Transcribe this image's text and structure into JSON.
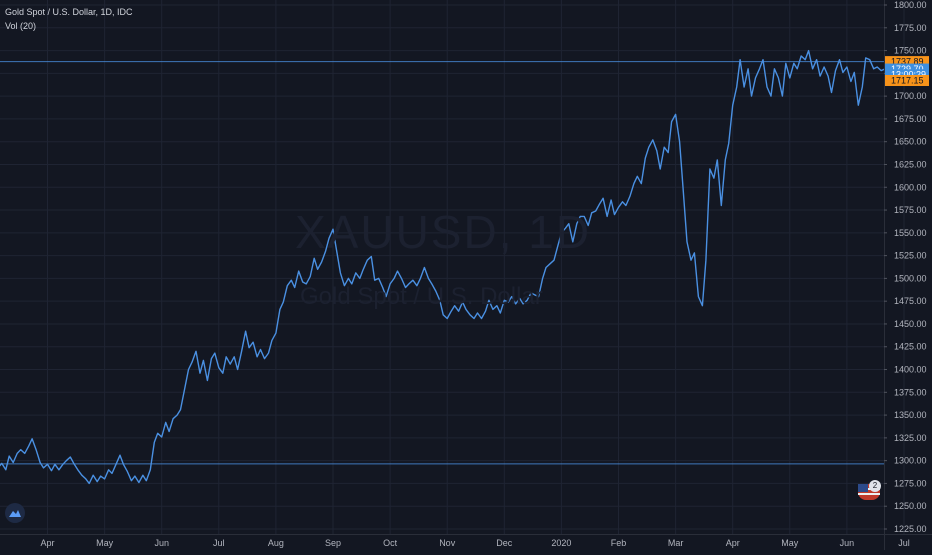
{
  "legend": {
    "title": "Gold Spot / U.S. Dollar, 1D, IDC",
    "indicator": "Vol (20)"
  },
  "watermark": {
    "symbol": "XAUUSD, 1D",
    "description": "Gold Spot / U.S. Dollar"
  },
  "badge_count": "2",
  "colors": {
    "background": "#131722",
    "line": "#4a90e2",
    "grid": "#1f2433",
    "axis_text": "#b2b5be",
    "price_label_orange": "#f7931a",
    "price_label_blue": "#3d8fe0"
  },
  "chart_data": {
    "type": "line",
    "ylim": [
      1225,
      1800
    ],
    "y_ticks": [
      1225,
      1250,
      1275,
      1300,
      1325,
      1350,
      1375,
      1400,
      1425,
      1450,
      1475,
      1500,
      1525,
      1550,
      1575,
      1600,
      1625,
      1650,
      1675,
      1700,
      1725,
      1750,
      1775,
      1800
    ],
    "y_tick_labels": [
      "1225.00",
      "1250.00",
      "1275.00",
      "1300.00",
      "1325.00",
      "1350.00",
      "1375.00",
      "1400.00",
      "1425.00",
      "1450.00",
      "1475.00",
      "1500.00",
      "1525.00",
      "1550.00",
      "1575.00",
      "1600.00",
      "1625.00",
      "1650.00",
      "1675.00",
      "1700.00",
      "1725.00",
      "1750.00",
      "1775.00",
      "1800.00"
    ],
    "x_ticks": [
      {
        "label": "Apr",
        "t": 1.0
      },
      {
        "label": "May",
        "t": 2.0
      },
      {
        "label": "Jun",
        "t": 3.0
      },
      {
        "label": "Jul",
        "t": 4.0
      },
      {
        "label": "Aug",
        "t": 5.0
      },
      {
        "label": "Sep",
        "t": 6.0
      },
      {
        "label": "Oct",
        "t": 7.0
      },
      {
        "label": "Nov",
        "t": 8.0
      },
      {
        "label": "Dec",
        "t": 9.0
      },
      {
        "label": "2020",
        "t": 10.0
      },
      {
        "label": "Feb",
        "t": 11.0
      },
      {
        "label": "Mar",
        "t": 12.0
      },
      {
        "label": "Apr",
        "t": 13.0
      },
      {
        "label": "May",
        "t": 14.0
      },
      {
        "label": "Jun",
        "t": 15.0
      },
      {
        "label": "Jul",
        "t": 16.0
      }
    ],
    "x_range": [
      0.13,
      16.2
    ],
    "series": [
      {
        "points": [
          [
            0.13,
            1292
          ],
          [
            0.2,
            1297
          ],
          [
            0.27,
            1290
          ],
          [
            0.33,
            1305
          ],
          [
            0.4,
            1298
          ],
          [
            0.47,
            1308
          ],
          [
            0.53,
            1312
          ],
          [
            0.6,
            1308
          ],
          [
            0.67,
            1316
          ],
          [
            0.73,
            1324
          ],
          [
            0.8,
            1312
          ],
          [
            0.87,
            1298
          ],
          [
            0.93,
            1292
          ],
          [
            1.0,
            1296
          ],
          [
            1.07,
            1289
          ],
          [
            1.13,
            1296
          ],
          [
            1.2,
            1290
          ],
          [
            1.27,
            1296
          ],
          [
            1.33,
            1300
          ],
          [
            1.4,
            1304
          ],
          [
            1.47,
            1296
          ],
          [
            1.53,
            1290
          ],
          [
            1.6,
            1284
          ],
          [
            1.67,
            1280
          ],
          [
            1.73,
            1275
          ],
          [
            1.8,
            1284
          ],
          [
            1.87,
            1277
          ],
          [
            1.93,
            1283
          ],
          [
            2.0,
            1280
          ],
          [
            2.07,
            1290
          ],
          [
            2.13,
            1286
          ],
          [
            2.2,
            1296
          ],
          [
            2.27,
            1306
          ],
          [
            2.33,
            1296
          ],
          [
            2.4,
            1288
          ],
          [
            2.47,
            1278
          ],
          [
            2.53,
            1283
          ],
          [
            2.6,
            1276
          ],
          [
            2.67,
            1284
          ],
          [
            2.73,
            1278
          ],
          [
            2.8,
            1290
          ],
          [
            2.87,
            1320
          ],
          [
            2.93,
            1330
          ],
          [
            3.0,
            1326
          ],
          [
            3.07,
            1342
          ],
          [
            3.13,
            1332
          ],
          [
            3.2,
            1346
          ],
          [
            3.27,
            1350
          ],
          [
            3.33,
            1356
          ],
          [
            3.4,
            1378
          ],
          [
            3.47,
            1400
          ],
          [
            3.53,
            1408
          ],
          [
            3.6,
            1420
          ],
          [
            3.67,
            1396
          ],
          [
            3.73,
            1410
          ],
          [
            3.8,
            1388
          ],
          [
            3.87,
            1412
          ],
          [
            3.93,
            1418
          ],
          [
            4.0,
            1402
          ],
          [
            4.07,
            1396
          ],
          [
            4.13,
            1414
          ],
          [
            4.2,
            1406
          ],
          [
            4.27,
            1414
          ],
          [
            4.33,
            1400
          ],
          [
            4.4,
            1420
          ],
          [
            4.47,
            1442
          ],
          [
            4.53,
            1424
          ],
          [
            4.6,
            1430
          ],
          [
            4.67,
            1414
          ],
          [
            4.73,
            1422
          ],
          [
            4.8,
            1412
          ],
          [
            4.87,
            1418
          ],
          [
            4.93,
            1432
          ],
          [
            5.0,
            1440
          ],
          [
            5.07,
            1466
          ],
          [
            5.13,
            1474
          ],
          [
            5.2,
            1492
          ],
          [
            5.27,
            1498
          ],
          [
            5.33,
            1490
          ],
          [
            5.4,
            1508
          ],
          [
            5.47,
            1496
          ],
          [
            5.53,
            1494
          ],
          [
            5.6,
            1502
          ],
          [
            5.67,
            1522
          ],
          [
            5.73,
            1510
          ],
          [
            5.8,
            1518
          ],
          [
            5.87,
            1530
          ],
          [
            5.93,
            1544
          ],
          [
            6.0,
            1554
          ],
          [
            6.07,
            1528
          ],
          [
            6.13,
            1506
          ],
          [
            6.2,
            1492
          ],
          [
            6.27,
            1500
          ],
          [
            6.33,
            1494
          ],
          [
            6.4,
            1506
          ],
          [
            6.47,
            1500
          ],
          [
            6.53,
            1510
          ],
          [
            6.6,
            1520
          ],
          [
            6.67,
            1524
          ],
          [
            6.73,
            1498
          ],
          [
            6.8,
            1500
          ],
          [
            6.87,
            1490
          ],
          [
            6.93,
            1480
          ],
          [
            7.0,
            1494
          ],
          [
            7.07,
            1500
          ],
          [
            7.13,
            1508
          ],
          [
            7.2,
            1500
          ],
          [
            7.27,
            1490
          ],
          [
            7.33,
            1494
          ],
          [
            7.4,
            1498
          ],
          [
            7.47,
            1492
          ],
          [
            7.53,
            1500
          ],
          [
            7.6,
            1512
          ],
          [
            7.67,
            1500
          ],
          [
            7.73,
            1494
          ],
          [
            7.8,
            1486
          ],
          [
            7.87,
            1476
          ],
          [
            7.93,
            1460
          ],
          [
            8.0,
            1456
          ],
          [
            8.07,
            1464
          ],
          [
            8.13,
            1470
          ],
          [
            8.2,
            1464
          ],
          [
            8.27,
            1474
          ],
          [
            8.33,
            1466
          ],
          [
            8.4,
            1460
          ],
          [
            8.47,
            1456
          ],
          [
            8.53,
            1462
          ],
          [
            8.6,
            1456
          ],
          [
            8.67,
            1464
          ],
          [
            8.73,
            1476
          ],
          [
            8.8,
            1466
          ],
          [
            8.87,
            1470
          ],
          [
            8.93,
            1462
          ],
          [
            9.0,
            1476
          ],
          [
            9.07,
            1474
          ],
          [
            9.13,
            1480
          ],
          [
            9.2,
            1472
          ],
          [
            9.27,
            1478
          ],
          [
            9.33,
            1472
          ],
          [
            9.4,
            1476
          ],
          [
            9.47,
            1484
          ],
          [
            9.53,
            1482
          ],
          [
            9.6,
            1480
          ],
          [
            9.67,
            1500
          ],
          [
            9.73,
            1512
          ],
          [
            9.8,
            1516
          ],
          [
            9.87,
            1520
          ],
          [
            9.93,
            1534
          ],
          [
            10.0,
            1550
          ],
          [
            10.07,
            1555
          ],
          [
            10.13,
            1560
          ],
          [
            10.2,
            1540
          ],
          [
            10.27,
            1560
          ],
          [
            10.33,
            1568
          ],
          [
            10.4,
            1568
          ],
          [
            10.47,
            1558
          ],
          [
            10.53,
            1572
          ],
          [
            10.6,
            1574
          ],
          [
            10.67,
            1582
          ],
          [
            10.73,
            1588
          ],
          [
            10.8,
            1568
          ],
          [
            10.87,
            1586
          ],
          [
            10.93,
            1570
          ],
          [
            11.0,
            1578
          ],
          [
            11.07,
            1584
          ],
          [
            11.13,
            1580
          ],
          [
            11.2,
            1590
          ],
          [
            11.27,
            1604
          ],
          [
            11.33,
            1612
          ],
          [
            11.4,
            1604
          ],
          [
            11.47,
            1632
          ],
          [
            11.53,
            1644
          ],
          [
            11.6,
            1652
          ],
          [
            11.67,
            1640
          ],
          [
            11.73,
            1620
          ],
          [
            11.8,
            1644
          ],
          [
            11.87,
            1638
          ],
          [
            11.93,
            1672
          ],
          [
            12.0,
            1680
          ],
          [
            12.07,
            1650
          ],
          [
            12.13,
            1600
          ],
          [
            12.2,
            1540
          ],
          [
            12.27,
            1520
          ],
          [
            12.33,
            1528
          ],
          [
            12.4,
            1480
          ],
          [
            12.47,
            1470
          ],
          [
            12.53,
            1520
          ],
          [
            12.6,
            1620
          ],
          [
            12.67,
            1610
          ],
          [
            12.73,
            1630
          ],
          [
            12.8,
            1580
          ],
          [
            12.87,
            1630
          ],
          [
            12.93,
            1648
          ],
          [
            13.0,
            1690
          ],
          [
            13.07,
            1710
          ],
          [
            13.13,
            1740
          ],
          [
            13.2,
            1710
          ],
          [
            13.27,
            1730
          ],
          [
            13.33,
            1700
          ],
          [
            13.4,
            1720
          ],
          [
            13.47,
            1730
          ],
          [
            13.53,
            1740
          ],
          [
            13.6,
            1710
          ],
          [
            13.67,
            1700
          ],
          [
            13.73,
            1730
          ],
          [
            13.8,
            1720
          ],
          [
            13.87,
            1700
          ],
          [
            13.93,
            1736
          ],
          [
            14.0,
            1720
          ],
          [
            14.07,
            1736
          ],
          [
            14.13,
            1730
          ],
          [
            14.2,
            1744
          ],
          [
            14.27,
            1740
          ],
          [
            14.33,
            1750
          ],
          [
            14.4,
            1730
          ],
          [
            14.47,
            1740
          ],
          [
            14.53,
            1722
          ],
          [
            14.6,
            1732
          ],
          [
            14.67,
            1722
          ],
          [
            14.73,
            1704
          ],
          [
            14.8,
            1728
          ],
          [
            14.87,
            1740
          ],
          [
            14.93,
            1726
          ],
          [
            15.0,
            1732
          ],
          [
            15.07,
            1716
          ],
          [
            15.13,
            1726
          ],
          [
            15.2,
            1690
          ],
          [
            15.27,
            1710
          ],
          [
            15.33,
            1742
          ],
          [
            15.4,
            1740
          ],
          [
            15.47,
            1730
          ],
          [
            15.53,
            1732
          ],
          [
            15.6,
            1728
          ],
          [
            15.67,
            1730
          ],
          [
            15.73,
            1726
          ],
          [
            15.8,
            1732
          ]
        ]
      }
    ],
    "reference_lines": [
      {
        "y": 1737.89,
        "x_start": 0.13,
        "x_end": 16.2
      },
      {
        "y": 1296.5,
        "x_start": 0.13,
        "x_end": 15.93
      }
    ],
    "price_labels": [
      {
        "text": "1737.89",
        "y": 1737.89,
        "style": "orange"
      },
      {
        "text": "1729.70",
        "y": 1729.7,
        "style": "blue"
      },
      {
        "text": "13:00:29",
        "y": 1723.5,
        "style": "blue"
      },
      {
        "text": "1717.15",
        "y": 1717.15,
        "style": "orange"
      }
    ]
  }
}
